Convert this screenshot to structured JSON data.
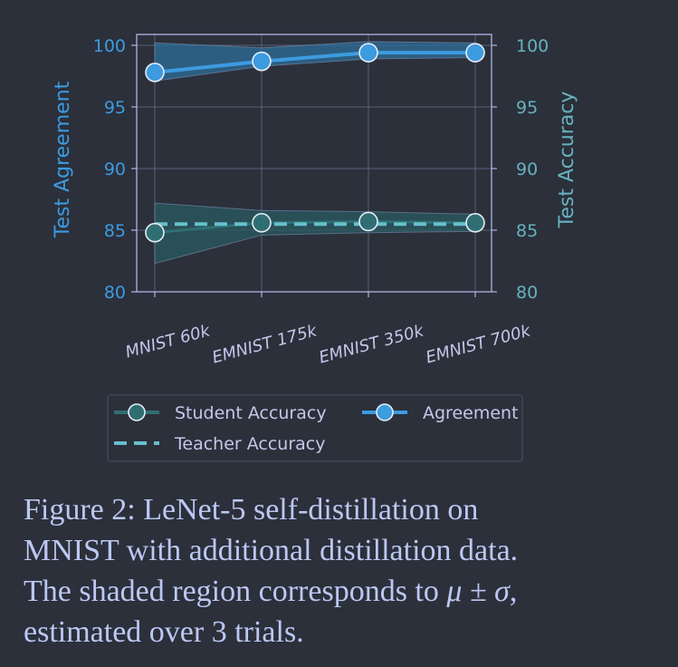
{
  "chart_data": {
    "type": "line",
    "categories": [
      "MNIST 60k",
      "EMNIST 175k",
      "EMNIST 350k",
      "EMNIST 700k"
    ],
    "y_left": {
      "label": "Test Agreement",
      "ticks": [
        "80",
        "85",
        "90",
        "95",
        "100"
      ],
      "lim": [
        80,
        100
      ]
    },
    "y_right": {
      "label": "Test Accuracy",
      "ticks": [
        "80",
        "85",
        "90",
        "95",
        "100"
      ],
      "lim": [
        80,
        100
      ]
    },
    "series": [
      {
        "name": "Agreement",
        "axis": "left",
        "color": "#3d9be0",
        "values": [
          97.8,
          98.7,
          99.4,
          99.4
        ],
        "lower": [
          97.1,
          98.3,
          98.9,
          99.0
        ],
        "upper": [
          100.2,
          99.8,
          100.3,
          100.2
        ]
      },
      {
        "name": "Student Accuracy",
        "axis": "right",
        "color": "#2f6f73",
        "values": [
          84.8,
          85.6,
          85.7,
          85.6
        ],
        "lower": [
          82.3,
          84.6,
          84.8,
          84.9
        ],
        "upper": [
          87.2,
          86.6,
          86.5,
          86.3
        ]
      },
      {
        "name": "Teacher Accuracy",
        "axis": "right",
        "color": "#66c0cc",
        "style": "dashed",
        "values": [
          85.5,
          85.5,
          85.5,
          85.5
        ]
      }
    ],
    "legend": {
      "placement": "bottom-center",
      "entries": [
        "Student Accuracy",
        "Agreement",
        "Teacher Accuracy"
      ]
    },
    "grid": true
  },
  "caption": {
    "line1": "Figure 2:  LeNet-5 self-distillation on",
    "line2": "MNIST with additional distillation data.",
    "line3_prefix": "The shaded region corresponds to ",
    "line3_math": "μ ± σ",
    "line3_suffix": ",",
    "line4": "estimated over 3 trials."
  }
}
